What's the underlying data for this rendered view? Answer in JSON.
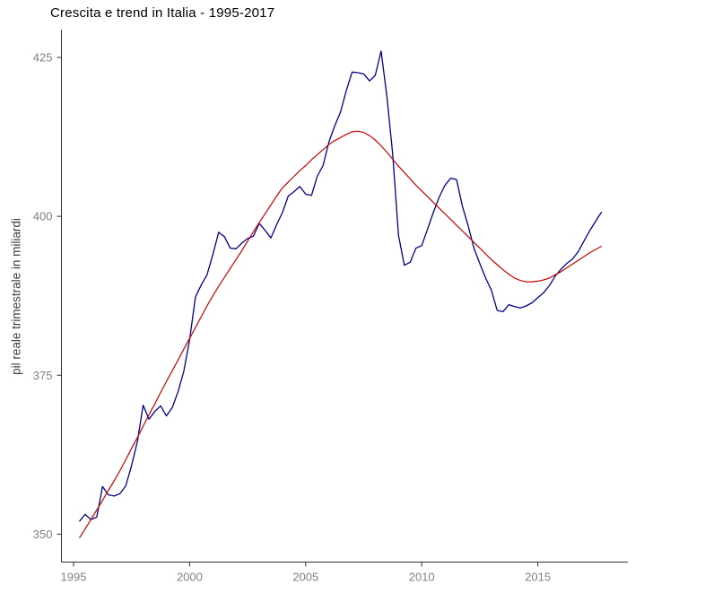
{
  "chart_data": {
    "type": "line",
    "title": "Crescita e trend in Italia - 1995-2017",
    "xlabel": "",
    "ylabel": "pil reale trimestrale in miliardi",
    "x_start": 1995.25,
    "x_step": 0.25,
    "xlim": [
      1994.5,
      2018.3
    ],
    "ylim": [
      347,
      428
    ],
    "grid": false,
    "legend": "none",
    "x_ticks": {
      "values": [
        1995,
        2000,
        2005,
        2010,
        2015
      ],
      "labels": [
        "1995",
        "2000",
        "2005",
        "2010",
        "2015"
      ]
    },
    "y_ticks": {
      "values": [
        350,
        375,
        400,
        425
      ],
      "labels": [
        "350",
        "375",
        "400",
        "425"
      ]
    },
    "series": [
      {
        "name": "pil reale trimestrale",
        "color": "#00008B",
        "width": 1.3,
        "values": [
          352.0,
          353.1,
          352.3,
          352.7,
          357.5,
          356.2,
          356.0,
          356.4,
          357.6,
          360.8,
          364.6,
          370.3,
          368.1,
          369.3,
          370.2,
          368.6,
          369.9,
          372.4,
          375.6,
          380.6,
          387.3,
          389.2,
          390.8,
          394.0,
          397.5,
          396.8,
          395.0,
          394.9,
          395.8,
          396.5,
          396.9,
          398.9,
          397.8,
          396.6,
          398.7,
          400.6,
          403.2,
          403.9,
          404.7,
          403.5,
          403.3,
          406.3,
          408.0,
          411.7,
          414.2,
          416.4,
          419.8,
          422.7,
          422.6,
          422.4,
          421.3,
          422.2,
          426.0,
          418.8,
          409.8,
          397.0,
          392.3,
          392.8,
          395.0,
          395.4,
          398.0,
          400.6,
          403.0,
          404.9,
          406.0,
          405.8,
          401.6,
          398.5,
          395.0,
          392.6,
          390.3,
          388.4,
          385.2,
          385.0,
          386.1,
          385.8,
          385.6,
          385.9,
          386.4,
          387.2,
          388.0,
          389.1,
          390.6,
          391.7,
          392.6,
          393.3,
          394.5,
          396.2,
          397.8,
          399.3,
          400.7
        ]
      },
      {
        "name": "trend",
        "color": "#CC0000",
        "width": 1.2,
        "values": [
          349.4,
          350.8,
          352.3,
          353.8,
          355.3,
          356.9,
          358.4,
          360.0,
          361.7,
          363.5,
          365.2,
          367.0,
          368.8,
          370.5,
          372.3,
          374.0,
          375.7,
          377.4,
          379.1,
          380.8,
          382.5,
          384.2,
          385.9,
          387.5,
          389.0,
          390.4,
          391.8,
          393.2,
          394.6,
          396.1,
          397.6,
          399.0,
          400.4,
          401.8,
          403.2,
          404.5,
          405.4,
          406.3,
          407.2,
          408.0,
          408.9,
          409.7,
          410.5,
          411.3,
          411.9,
          412.4,
          412.9,
          413.3,
          413.4,
          413.2,
          412.7,
          412.0,
          411.1,
          410.1,
          409.0,
          407.9,
          406.9,
          405.9,
          404.9,
          404.0,
          403.1,
          402.2,
          401.3,
          400.4,
          399.5,
          398.6,
          397.7,
          396.8,
          395.9,
          395.0,
          394.1,
          393.2,
          392.4,
          391.6,
          390.9,
          390.3,
          389.9,
          389.7,
          389.7,
          389.8,
          390.0,
          390.3,
          390.8,
          391.3,
          391.9,
          392.5,
          393.1,
          393.7,
          394.3,
          394.8,
          395.3
        ]
      }
    ],
    "colors": {
      "background": "#ffffff",
      "axis_line": "#333333",
      "tick_label": "#7f7f7f",
      "title": "#000000",
      "y_axis_label": "#404040"
    }
  }
}
